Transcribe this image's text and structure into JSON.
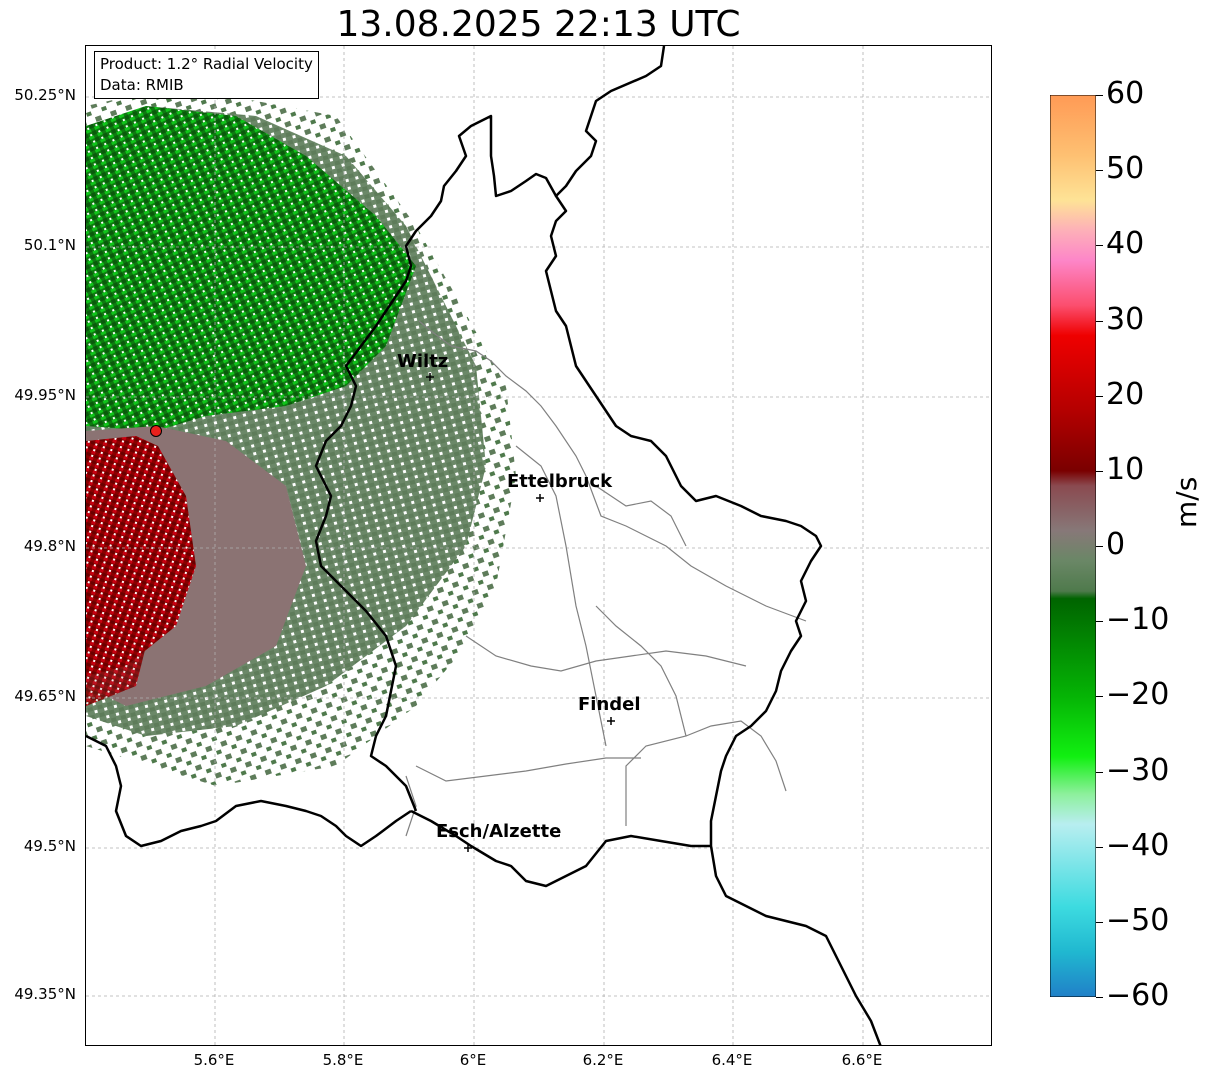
{
  "title": "13.08.2025 22:13 UTC",
  "info": {
    "product_line": "Product: 1.2° Radial Velocity",
    "data_line": "Data: RMIB"
  },
  "axes": {
    "lat_ticks": [
      "50.25°N",
      "50.1°N",
      "49.95°N",
      "49.8°N",
      "49.65°N",
      "49.5°N",
      "49.35°N"
    ],
    "lon_ticks": [
      "5.6°E",
      "5.8°E",
      "6°E",
      "6.2°E",
      "6.4°E",
      "6.6°E"
    ],
    "grid": true
  },
  "cities": [
    {
      "name": "Wiltz"
    },
    {
      "name": "Ettelbruck"
    },
    {
      "name": "Findel"
    },
    {
      "name": "Esch/Alzette"
    }
  ],
  "radar_site": {
    "marker_color": "#e8211c"
  },
  "colorbar": {
    "label": "m/s",
    "min": -60,
    "max": 60,
    "ticks": [
      "60",
      "50",
      "40",
      "30",
      "20",
      "10",
      "0",
      "−10",
      "−20",
      "−30",
      "−40",
      "−50",
      "−60"
    ],
    "stops": [
      {
        "v": 60,
        "color": "#ff9a55"
      },
      {
        "v": 52,
        "color": "#fec072"
      },
      {
        "v": 46,
        "color": "#fee396"
      },
      {
        "v": 42,
        "color": "#fdb0b8"
      },
      {
        "v": 38,
        "color": "#fd86c8"
      },
      {
        "v": 32,
        "color": "#fc4e6e"
      },
      {
        "v": 28,
        "color": "#ef0000"
      },
      {
        "v": 18,
        "color": "#b40000"
      },
      {
        "v": 10,
        "color": "#7a0000"
      },
      {
        "v": 8,
        "color": "#8a4a50"
      },
      {
        "v": 2,
        "color": "#877878"
      },
      {
        "v": -2,
        "color": "#6a8766"
      },
      {
        "v": -6,
        "color": "#4f7a4c"
      },
      {
        "v": -7,
        "color": "#006400"
      },
      {
        "v": -20,
        "color": "#05b405"
      },
      {
        "v": -28,
        "color": "#11f011"
      },
      {
        "v": -33,
        "color": "#8df09c"
      },
      {
        "v": -37,
        "color": "#b8eef0"
      },
      {
        "v": -48,
        "color": "#3ddbe0"
      },
      {
        "v": -54,
        "color": "#20b8d0"
      },
      {
        "v": -60,
        "color": "#2080c8"
      }
    ]
  }
}
